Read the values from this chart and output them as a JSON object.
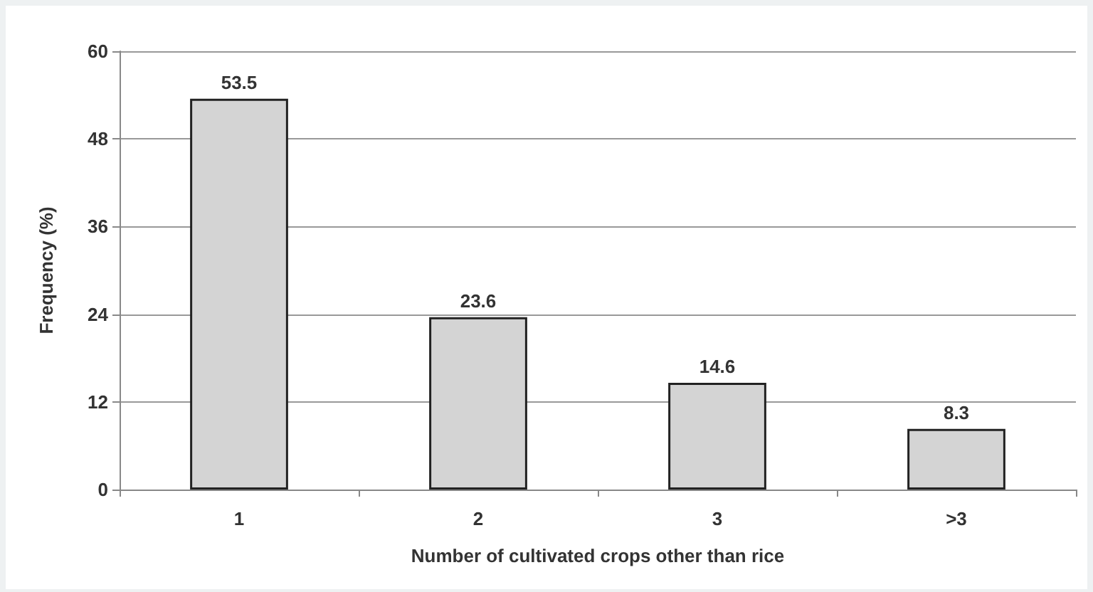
{
  "chart_data": {
    "type": "bar",
    "xlabel": "Number of cultivated crops other than rice",
    "ylabel": "Frequency (%)",
    "categories": [
      "1",
      "2",
      "3",
      ">3"
    ],
    "values": [
      53.5,
      23.6,
      14.6,
      8.3
    ],
    "color": "#d4d4d4",
    "ylim": [
      0,
      60
    ],
    "yticks": [
      0,
      12,
      24,
      36,
      48,
      60
    ],
    "grid": "y",
    "data_labels": true
  }
}
